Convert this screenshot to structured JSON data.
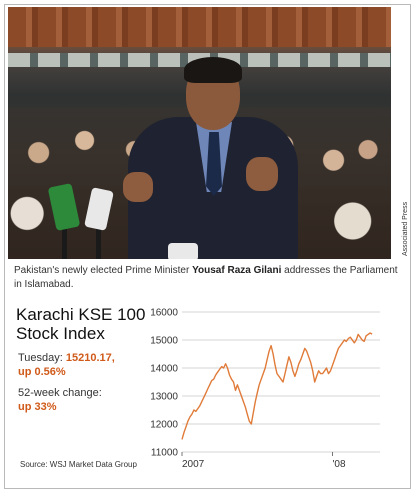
{
  "photo": {
    "credit": "Associated Press",
    "caption_prefix": "Pakistan's newly elected Prime Minister ",
    "caption_name": "Yousaf Raza Gilani",
    "caption_suffix": " addresses the Parliament in Islamabad."
  },
  "chart_panel": {
    "title": "Karachi KSE 100 Stock Index",
    "tuesday_label": "Tuesday:",
    "tuesday_value": "15210.17,",
    "tuesday_change": "up 0.56%",
    "week_label": "52-week change:",
    "week_value": "up 33%",
    "source": "Source: WSJ Market Data Group"
  },
  "colors": {
    "line": "#e07b39",
    "accent_text": "#d05a1a",
    "grid": "#c8c8c8"
  },
  "chart_data": {
    "type": "line",
    "title": "Karachi KSE 100 Stock Index",
    "xlabel": "",
    "ylabel": "",
    "ylim": [
      11000,
      16000
    ],
    "yticks": [
      11000,
      12000,
      13000,
      14000,
      15000,
      16000
    ],
    "ytick_labels": [
      "11000",
      "12000",
      "13000",
      "14000",
      "15000",
      "16000"
    ],
    "xlim": [
      0,
      100
    ],
    "xticks": [
      {
        "x": 0,
        "label": "2007"
      },
      {
        "x": 76,
        "label": "'08"
      }
    ],
    "grid": "horizontal",
    "series": [
      {
        "x": [
          0,
          1,
          2,
          3,
          4,
          5,
          6,
          7,
          8,
          9,
          10,
          11,
          12,
          13,
          14,
          15,
          16,
          17,
          18,
          19,
          20,
          21,
          22,
          23,
          24,
          25,
          26,
          27,
          28,
          29,
          30,
          31,
          32,
          33,
          34,
          35,
          36,
          37,
          38,
          39,
          40,
          41,
          42,
          43,
          44,
          45,
          46,
          47,
          48,
          49,
          50,
          51,
          52,
          53,
          54,
          55,
          56,
          57,
          58,
          59,
          60,
          61,
          62,
          63,
          64,
          65,
          66,
          67,
          68,
          69,
          70,
          71,
          72,
          73,
          74,
          75,
          76,
          77,
          78,
          79,
          80,
          81,
          82,
          83,
          84,
          85,
          86,
          87,
          88,
          89,
          90,
          91,
          92,
          93,
          94,
          95,
          96
        ],
        "values": [
          11450,
          11700,
          11900,
          12100,
          12250,
          12350,
          12500,
          12450,
          12550,
          12650,
          12800,
          12950,
          13100,
          13250,
          13400,
          13550,
          13600,
          13750,
          13850,
          13950,
          14050,
          14000,
          14150,
          14000,
          13750,
          13600,
          13500,
          13200,
          13400,
          13200,
          13000,
          12800,
          12600,
          12350,
          12100,
          12000,
          12400,
          12800,
          13100,
          13400,
          13600,
          13800,
          14000,
          14300,
          14600,
          14800,
          14500,
          14100,
          13800,
          13700,
          13600,
          13500,
          13800,
          14100,
          14400,
          14200,
          13900,
          13700,
          13900,
          14150,
          14300,
          14500,
          14700,
          14600,
          14400,
          14200,
          13900,
          13500,
          13700,
          13900,
          13800,
          13800,
          13900,
          14000,
          13800,
          13900,
          14100,
          14300,
          14500,
          14700,
          14800,
          14900,
          15000,
          14950,
          15050,
          15100,
          15000,
          14900,
          15000,
          15200,
          15100,
          15000,
          14950,
          15150,
          15200,
          15250,
          15210
        ]
      }
    ]
  }
}
